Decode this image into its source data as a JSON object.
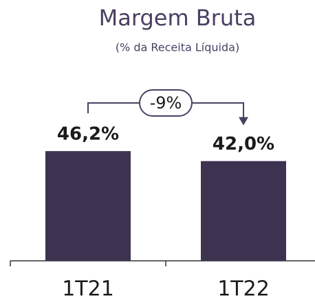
{
  "chart_data": {
    "type": "bar",
    "title": "Margem Bruta",
    "subtitle": "(% da Receita Líquida)",
    "categories": [
      "1T21",
      "1T22"
    ],
    "values": [
      46.2,
      42.0
    ],
    "value_labels": [
      "46,2%",
      "42,0%"
    ],
    "color": "#3d3350",
    "annotation": "-9%"
  }
}
